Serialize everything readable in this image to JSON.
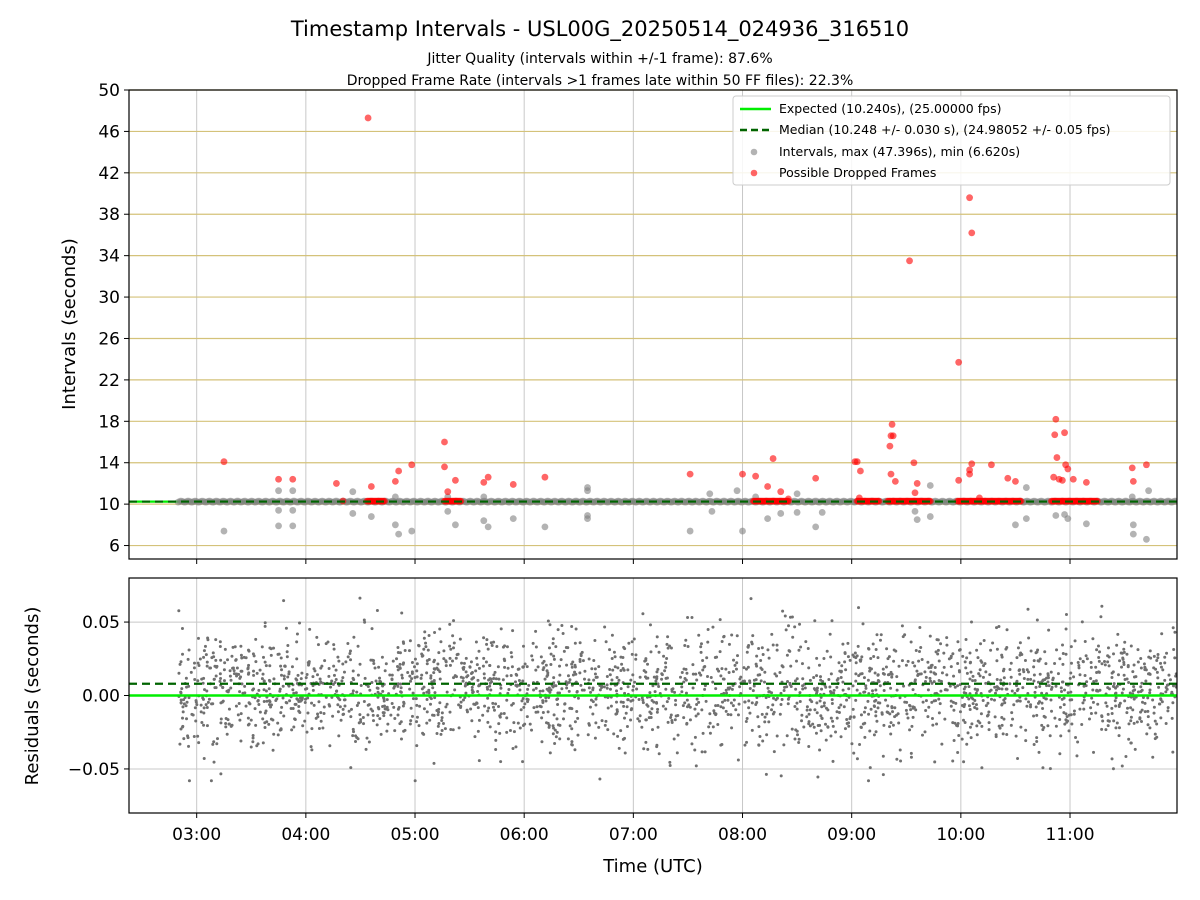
{
  "chart_data": [
    {
      "type": "scatter",
      "title": "Timestamp Intervals - USL00G_20250514_024936_316510",
      "subtitle_lines": [
        "Jitter Quality (intervals within +/-1 frame): 87.6%",
        "Dropped Frame Rate (intervals >1 frames late within 50 FF files): 22.3%"
      ],
      "ylabel": "Intervals (seconds)",
      "xlim_hours": [
        2.38,
        11.98
      ],
      "ylim": [
        4.7,
        50
      ],
      "yticks": [
        6,
        10,
        14,
        18,
        22,
        26,
        30,
        34,
        38,
        42,
        46,
        50
      ],
      "y_grid_color": "#d4c27a",
      "legend_position": "top-right",
      "legend": [
        "Expected (10.240s), (25.00000 fps)",
        "Median (10.248 +/- 0.030 s), (24.98052 +/- 0.05 fps)",
        "Intervals, max (47.396s), min (6.620s)",
        "Possible Dropped Frames"
      ],
      "expected_value": 10.24,
      "median_value": 10.248,
      "colors": {
        "expected": "#00ee00",
        "median": "#006400",
        "interval": "#808080",
        "dropped": "#ff0000"
      },
      "interval_band": {
        "value": 10.24,
        "from": 2.83,
        "to": 11.98
      },
      "dropped_bands": [
        {
          "value": 10.24,
          "from": 4.56,
          "to": 4.72
        },
        {
          "value": 10.24,
          "from": 5.27,
          "to": 5.42
        },
        {
          "value": 10.24,
          "from": 8.1,
          "to": 8.42
        },
        {
          "value": 10.24,
          "from": 9.05,
          "to": 9.25
        },
        {
          "value": 10.24,
          "from": 9.33,
          "to": 9.72
        },
        {
          "value": 10.24,
          "from": 9.97,
          "to": 10.55
        },
        {
          "value": 10.24,
          "from": 10.83,
          "to": 11.25
        }
      ],
      "dropped_points": [
        [
          3.25,
          14.1
        ],
        [
          3.75,
          12.4
        ],
        [
          3.88,
          12.4
        ],
        [
          4.28,
          12.0
        ],
        [
          4.34,
          10.3
        ],
        [
          4.57,
          47.3
        ],
        [
          4.6,
          11.7
        ],
        [
          4.82,
          12.2
        ],
        [
          4.85,
          13.2
        ],
        [
          4.97,
          13.8
        ],
        [
          5.27,
          16.0
        ],
        [
          5.27,
          13.6
        ],
        [
          5.3,
          11.2
        ],
        [
          5.37,
          12.3
        ],
        [
          5.63,
          12.1
        ],
        [
          5.67,
          12.6
        ],
        [
          5.9,
          11.9
        ],
        [
          6.19,
          12.6
        ],
        [
          7.52,
          12.9
        ],
        [
          8.0,
          12.9
        ],
        [
          8.12,
          12.7
        ],
        [
          8.23,
          11.7
        ],
        [
          8.28,
          14.4
        ],
        [
          8.35,
          11.2
        ],
        [
          8.42,
          10.5
        ],
        [
          8.67,
          12.5
        ],
        [
          9.03,
          14.1
        ],
        [
          9.05,
          14.1
        ],
        [
          9.08,
          13.2
        ],
        [
          9.07,
          10.6
        ],
        [
          9.37,
          17.7
        ],
        [
          9.36,
          16.6
        ],
        [
          9.38,
          16.6
        ],
        [
          9.35,
          15.6
        ],
        [
          9.36,
          12.9
        ],
        [
          9.4,
          12.2
        ],
        [
          9.53,
          33.5
        ],
        [
          9.57,
          14.0
        ],
        [
          9.6,
          12.0
        ],
        [
          9.58,
          11.1
        ],
        [
          9.98,
          23.7
        ],
        [
          9.98,
          12.3
        ],
        [
          10.08,
          39.6
        ],
        [
          10.1,
          36.2
        ],
        [
          10.1,
          13.9
        ],
        [
          10.08,
          13.3
        ],
        [
          10.08,
          12.9
        ],
        [
          10.17,
          10.6
        ],
        [
          10.28,
          13.8
        ],
        [
          10.43,
          12.5
        ],
        [
          10.5,
          12.2
        ],
        [
          10.87,
          18.2
        ],
        [
          10.86,
          16.7
        ],
        [
          10.95,
          16.9
        ],
        [
          10.88,
          14.5
        ],
        [
          10.96,
          13.8
        ],
        [
          10.98,
          13.4
        ],
        [
          10.85,
          12.6
        ],
        [
          10.9,
          12.4
        ],
        [
          10.93,
          12.3
        ],
        [
          11.03,
          12.4
        ],
        [
          11.15,
          12.1
        ],
        [
          11.57,
          13.5
        ],
        [
          11.58,
          12.2
        ],
        [
          11.7,
          13.8
        ]
      ],
      "grey_points": [
        [
          3.25,
          7.4
        ],
        [
          3.75,
          11.3
        ],
        [
          3.75,
          9.4
        ],
        [
          3.75,
          7.9
        ],
        [
          3.88,
          11.3
        ],
        [
          3.88,
          9.4
        ],
        [
          3.88,
          7.9
        ],
        [
          4.43,
          11.2
        ],
        [
          4.43,
          9.1
        ],
        [
          4.6,
          8.8
        ],
        [
          4.82,
          10.7
        ],
        [
          4.82,
          8.0
        ],
        [
          4.85,
          7.1
        ],
        [
          4.97,
          7.4
        ],
        [
          5.3,
          10.7
        ],
        [
          5.3,
          9.3
        ],
        [
          5.37,
          8.0
        ],
        [
          5.63,
          10.7
        ],
        [
          5.63,
          8.4
        ],
        [
          5.67,
          7.8
        ],
        [
          5.9,
          8.6
        ],
        [
          6.19,
          7.8
        ],
        [
          6.58,
          11.6
        ],
        [
          6.58,
          11.3
        ],
        [
          6.58,
          8.9
        ],
        [
          6.58,
          8.6
        ],
        [
          7.52,
          7.4
        ],
        [
          7.7,
          11.0
        ],
        [
          7.72,
          9.3
        ],
        [
          7.95,
          11.3
        ],
        [
          8.0,
          7.4
        ],
        [
          8.12,
          10.7
        ],
        [
          8.23,
          8.6
        ],
        [
          8.35,
          9.1
        ],
        [
          8.5,
          11.0
        ],
        [
          8.5,
          9.2
        ],
        [
          8.67,
          7.8
        ],
        [
          8.73,
          9.2
        ],
        [
          9.58,
          9.3
        ],
        [
          9.6,
          8.5
        ],
        [
          9.72,
          11.8
        ],
        [
          9.72,
          8.8
        ],
        [
          10.5,
          8.0
        ],
        [
          10.6,
          11.6
        ],
        [
          10.6,
          8.6
        ],
        [
          10.87,
          8.9
        ],
        [
          10.95,
          9.0
        ],
        [
          10.98,
          8.6
        ],
        [
          11.15,
          8.1
        ],
        [
          11.57,
          10.7
        ],
        [
          11.58,
          8.0
        ],
        [
          11.58,
          7.1
        ],
        [
          11.7,
          6.6
        ],
        [
          11.72,
          11.3
        ]
      ]
    },
    {
      "type": "scatter",
      "ylabel": "Residuals (seconds)",
      "xlabel": "Time (UTC)",
      "xlim_hours": [
        2.38,
        11.98
      ],
      "ylim": [
        -0.08,
        0.08
      ],
      "yticks": [
        -0.05,
        0.0,
        0.05
      ],
      "ytick_labels": [
        "−0.05",
        "0.00",
        "0.05"
      ],
      "xticks": [
        3,
        4,
        5,
        6,
        7,
        8,
        9,
        10,
        11
      ],
      "xtick_labels": [
        "03:00",
        "04:00",
        "05:00",
        "06:00",
        "07:00",
        "08:00",
        "09:00",
        "10:00",
        "11:00"
      ],
      "expected_residual": 0.0,
      "median_residual": 0.008,
      "colors": {
        "expected": "#00ee00",
        "median": "#006400",
        "point": "#707070"
      },
      "residual_point_count": 2600,
      "residual_point_x_range": [
        2.83,
        11.98
      ],
      "residual_typical_sigma": 0.02
    }
  ]
}
